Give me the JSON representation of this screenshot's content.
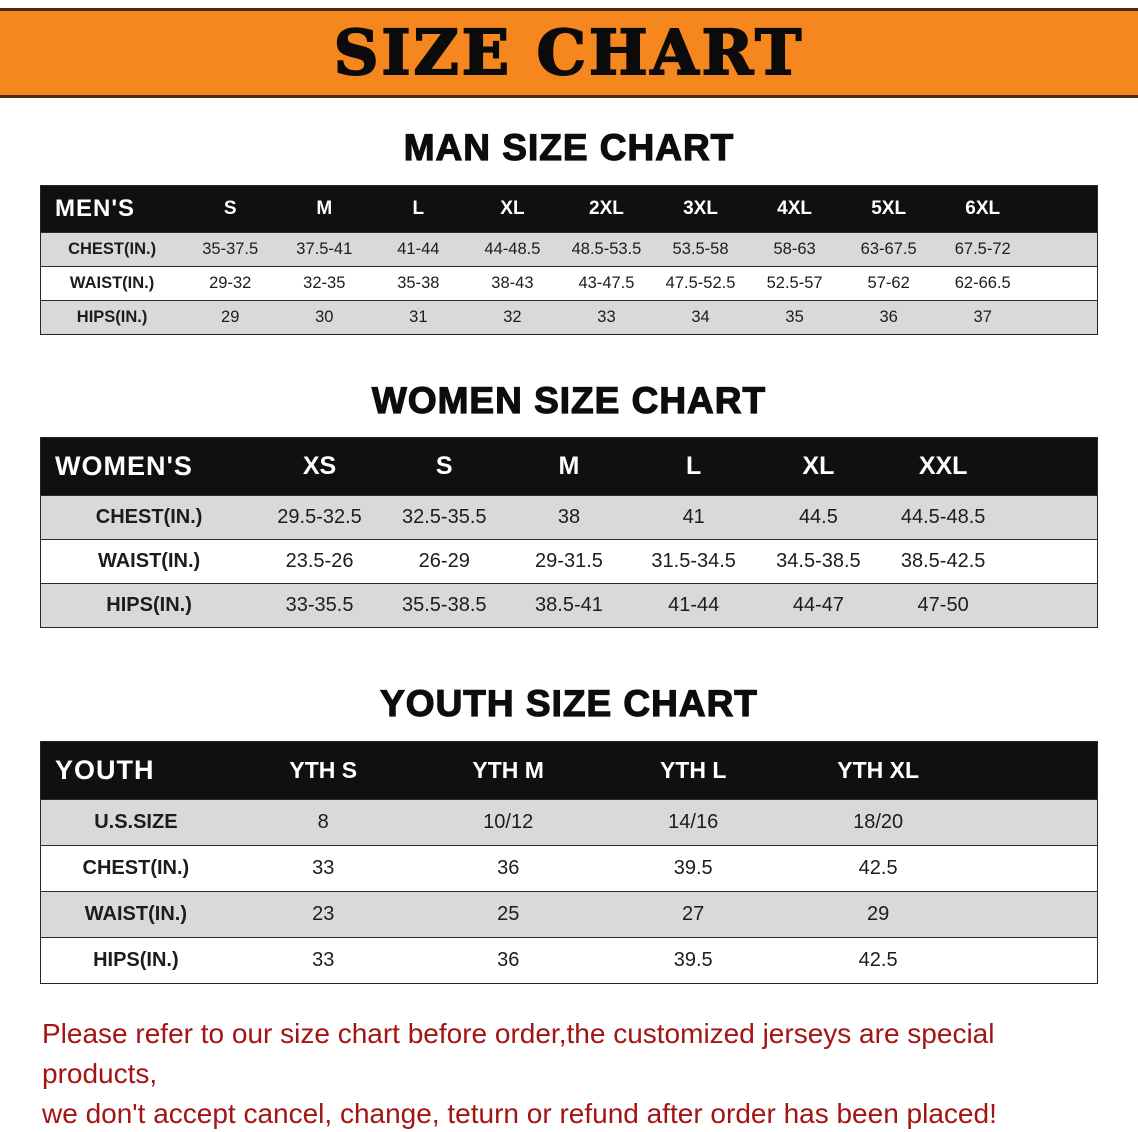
{
  "colors": {
    "banner_orange": "#f6871f",
    "table_header_bg": "#101010",
    "row_stripe": "#d9d9d9",
    "footer_red": "#a31515"
  },
  "banner": {
    "title": "SIZE CHART"
  },
  "sections": [
    {
      "heading": "MAN SIZE CHART",
      "table": {
        "label": "MEN'S",
        "columns": [
          "S",
          "M",
          "L",
          "XL",
          "2XL",
          "3XL",
          "4XL",
          "5XL",
          "6XL"
        ],
        "rows": [
          {
            "label": "CHEST(IN.)",
            "values": [
              "35-37.5",
              "37.5-41",
              "41-44",
              "44-48.5",
              "48.5-53.5",
              "53.5-58",
              "58-63",
              "63-67.5",
              "67.5-72"
            ]
          },
          {
            "label": "WAIST(IN.)",
            "values": [
              "29-32",
              "32-35",
              "35-38",
              "38-43",
              "43-47.5",
              "47.5-52.5",
              "52.5-57",
              "57-62",
              "62-66.5"
            ]
          },
          {
            "label": "HIPS(IN.)",
            "values": [
              "29",
              "30",
              "31",
              "32",
              "33",
              "34",
              "35",
              "36",
              "37"
            ]
          }
        ]
      }
    },
    {
      "heading": "WOMEN SIZE CHART",
      "table": {
        "label": "WOMEN'S",
        "columns": [
          "XS",
          "S",
          "M",
          "L",
          "XL",
          "XXL"
        ],
        "rows": [
          {
            "label": "CHEST(IN.)",
            "values": [
              "29.5-32.5",
              "32.5-35.5",
              "38",
              "41",
              "44.5",
              "44.5-48.5"
            ]
          },
          {
            "label": "WAIST(IN.)",
            "values": [
              "23.5-26",
              "26-29",
              "29-31.5",
              "31.5-34.5",
              "34.5-38.5",
              "38.5-42.5"
            ]
          },
          {
            "label": "HIPS(IN.)",
            "values": [
              "33-35.5",
              "35.5-38.5",
              "38.5-41",
              "41-44",
              "44-47",
              "47-50"
            ]
          }
        ]
      }
    },
    {
      "heading": "YOUTH SIZE CHART",
      "table": {
        "label": "YOUTH",
        "columns": [
          "YTH S",
          "YTH M",
          "YTH L",
          "YTH XL"
        ],
        "rows": [
          {
            "label": "U.S.SIZE",
            "values": [
              "8",
              "10/12",
              "14/16",
              "18/20"
            ]
          },
          {
            "label": "CHEST(IN.)",
            "values": [
              "33",
              "36",
              "39.5",
              "42.5"
            ]
          },
          {
            "label": "WAIST(IN.)",
            "values": [
              "23",
              "25",
              "27",
              "29"
            ]
          },
          {
            "label": "HIPS(IN.)",
            "values": [
              "33",
              "36",
              "39.5",
              "42.5"
            ]
          }
        ]
      }
    }
  ],
  "footer": {
    "line1": "Please refer to our size chart before order,the customized jerseys are special products,",
    "line2": "we don't accept cancel, change, teturn or refund after order has been placed!"
  }
}
